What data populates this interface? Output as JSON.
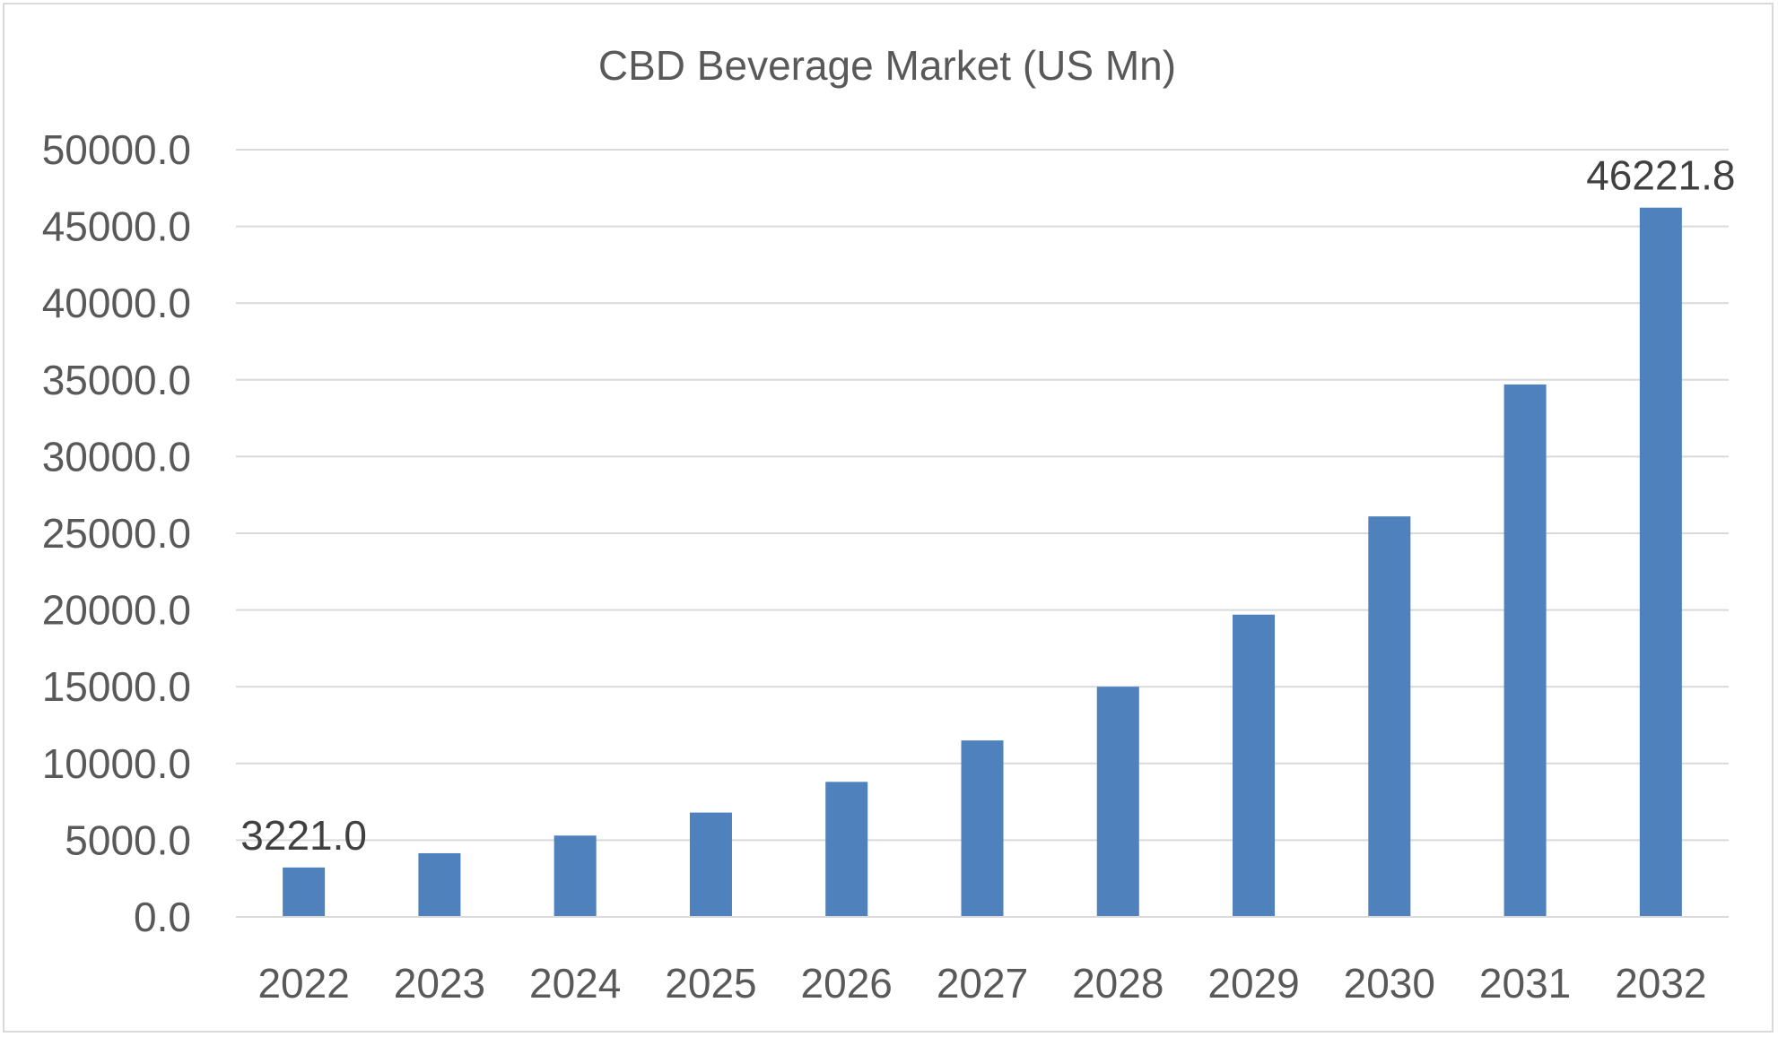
{
  "chart_data": {
    "type": "bar",
    "title": "CBD Beverage Market (US Mn)",
    "xlabel": "",
    "ylabel": "",
    "categories": [
      "2022",
      "2023",
      "2024",
      "2025",
      "2026",
      "2027",
      "2028",
      "2029",
      "2030",
      "2031",
      "2032"
    ],
    "values": [
      3221.0,
      4150,
      5300,
      6800,
      8800,
      11500,
      15000,
      19700,
      26100,
      34700,
      46221.8
    ],
    "ylim": [
      0,
      50000
    ],
    "y_ticks": [
      "0.0",
      "5000.0",
      "10000.0",
      "15000.0",
      "20000.0",
      "25000.0",
      "30000.0",
      "35000.0",
      "40000.0",
      "45000.0",
      "50000.0"
    ],
    "y_tick_values": [
      0,
      5000,
      10000,
      15000,
      20000,
      25000,
      30000,
      35000,
      40000,
      45000,
      50000
    ],
    "data_labels": [
      {
        "category": "2022",
        "text": "3221.0"
      },
      {
        "category": "2032",
        "text": "46221.8"
      }
    ],
    "grid": true,
    "legend": "none",
    "bar_color": "#4f81bd"
  }
}
